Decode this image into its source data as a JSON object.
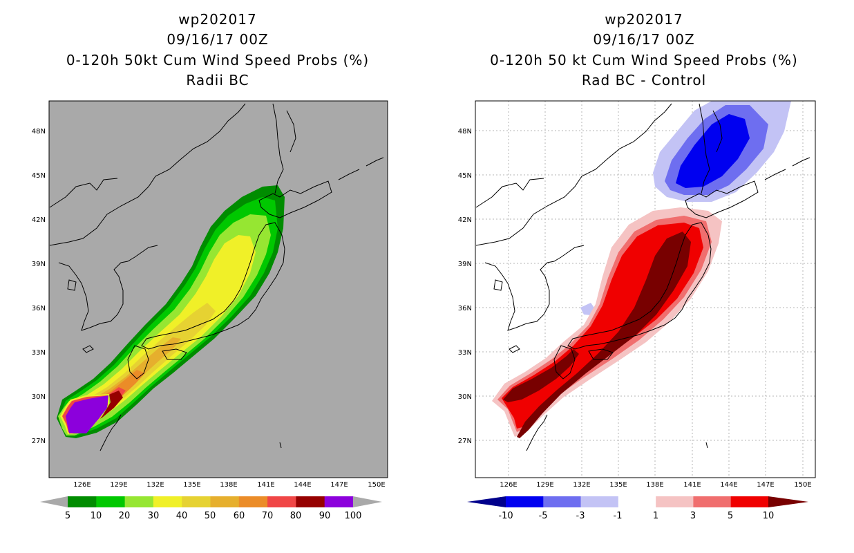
{
  "left_panel": {
    "title_lines": [
      "wp202017",
      "09/16/17 00Z",
      "0-120h 50kt Cum Wind Speed Probs (%)",
      "Radii BC"
    ],
    "lat_labels": [
      "48N",
      "45N",
      "42N",
      "39N",
      "36N",
      "33N",
      "30N",
      "27N"
    ],
    "lon_labels": [
      "126E",
      "129E",
      "132E",
      "135E",
      "138E",
      "141E",
      "144E",
      "147E",
      "150E"
    ],
    "background_color": "#a9a9a9",
    "colorbar": {
      "labels": [
        "5",
        "10",
        "20",
        "30",
        "40",
        "50",
        "60",
        "70",
        "80",
        "90",
        "100"
      ],
      "colors": [
        "#008c00",
        "#00c800",
        "#96e632",
        "#f0f028",
        "#e6d232",
        "#e6af2d",
        "#eb8c28",
        "#f04646",
        "#960000",
        "#8c00dc"
      ]
    }
  },
  "right_panel": {
    "title_lines": [
      "wp202017",
      "09/16/17 00Z",
      "0-120h 50 kt Cum Wind Speed Probs (%)",
      "Rad BC - Control"
    ],
    "lat_labels": [
      "48N",
      "45N",
      "42N",
      "39N",
      "36N",
      "33N",
      "30N",
      "27N"
    ],
    "lon_labels": [
      "126E",
      "129E",
      "132E",
      "135E",
      "138E",
      "141E",
      "144E",
      "147E",
      "150E"
    ],
    "colorbar": {
      "labels": [
        "-10",
        "-5",
        "-3",
        "-1",
        "1",
        "3",
        "5",
        "10"
      ],
      "colors": [
        "#00008c",
        "#0000f0",
        "#6e6ef0",
        "#c3c3f5",
        "#ffffff",
        "#f5c3c3",
        "#f06e6e",
        "#f00000",
        "#780000"
      ]
    }
  }
}
